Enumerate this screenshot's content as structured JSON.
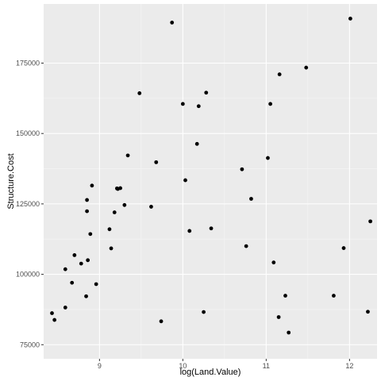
{
  "chart_data": {
    "type": "scatter",
    "title": "",
    "xlabel": "log(Land.Value)",
    "ylabel": "Structure.Cost",
    "xlim": [
      8.33,
      12.33
    ],
    "ylim": [
      70000,
      196000
    ],
    "x_ticks": [
      9,
      10,
      11,
      12
    ],
    "x_tick_labels": [
      "9",
      "10",
      "11",
      "12"
    ],
    "y_ticks": [
      75000,
      100000,
      125000,
      150000,
      175000
    ],
    "y_tick_labels": [
      "75000",
      "100000",
      "125000",
      "150000",
      "175000"
    ],
    "grid": true,
    "legend": "none",
    "colors": {
      "panel": "#ebebeb",
      "grid_major": "#ffffff",
      "grid_minor": "#f5f5f5",
      "point": "#000000"
    },
    "points": [
      {
        "x": 8.43,
        "y": 86200
      },
      {
        "x": 8.46,
        "y": 83800
      },
      {
        "x": 8.59,
        "y": 88200
      },
      {
        "x": 8.59,
        "y": 101800
      },
      {
        "x": 8.67,
        "y": 97000
      },
      {
        "x": 8.7,
        "y": 106800
      },
      {
        "x": 8.78,
        "y": 103800
      },
      {
        "x": 8.84,
        "y": 92200
      },
      {
        "x": 8.85,
        "y": 126400
      },
      {
        "x": 8.85,
        "y": 122400
      },
      {
        "x": 8.86,
        "y": 105000
      },
      {
        "x": 8.89,
        "y": 114300
      },
      {
        "x": 8.91,
        "y": 131500
      },
      {
        "x": 8.96,
        "y": 96500
      },
      {
        "x": 9.12,
        "y": 116000
      },
      {
        "x": 9.14,
        "y": 109200
      },
      {
        "x": 9.18,
        "y": 122000
      },
      {
        "x": 9.21,
        "y": 130500
      },
      {
        "x": 9.22,
        "y": 130300
      },
      {
        "x": 9.25,
        "y": 130600
      },
      {
        "x": 9.3,
        "y": 124600
      },
      {
        "x": 9.34,
        "y": 142200
      },
      {
        "x": 9.48,
        "y": 164300
      },
      {
        "x": 9.62,
        "y": 124000
      },
      {
        "x": 9.68,
        "y": 139800
      },
      {
        "x": 9.74,
        "y": 83300
      },
      {
        "x": 9.87,
        "y": 189400
      },
      {
        "x": 10.0,
        "y": 160500
      },
      {
        "x": 10.03,
        "y": 133400
      },
      {
        "x": 10.08,
        "y": 115400
      },
      {
        "x": 10.17,
        "y": 146300
      },
      {
        "x": 10.19,
        "y": 159700
      },
      {
        "x": 10.25,
        "y": 86600
      },
      {
        "x": 10.28,
        "y": 164500
      },
      {
        "x": 10.34,
        "y": 116300
      },
      {
        "x": 10.71,
        "y": 137300
      },
      {
        "x": 10.76,
        "y": 110000
      },
      {
        "x": 10.82,
        "y": 126800
      },
      {
        "x": 11.02,
        "y": 141300
      },
      {
        "x": 11.05,
        "y": 160500
      },
      {
        "x": 11.09,
        "y": 104200
      },
      {
        "x": 11.15,
        "y": 84800
      },
      {
        "x": 11.16,
        "y": 171000
      },
      {
        "x": 11.23,
        "y": 92400
      },
      {
        "x": 11.27,
        "y": 79300
      },
      {
        "x": 11.48,
        "y": 173400
      },
      {
        "x": 11.81,
        "y": 92400
      },
      {
        "x": 11.93,
        "y": 109300
      },
      {
        "x": 12.01,
        "y": 190800
      },
      {
        "x": 12.22,
        "y": 86700
      },
      {
        "x": 12.25,
        "y": 118800
      }
    ]
  }
}
